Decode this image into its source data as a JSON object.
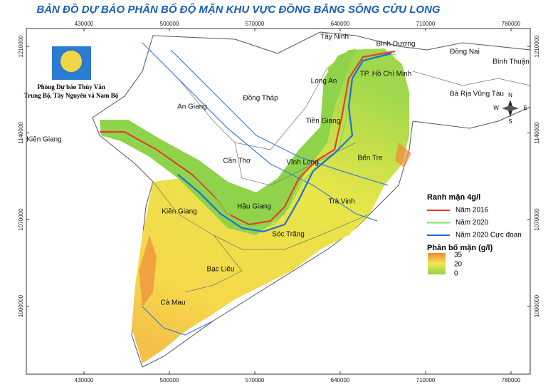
{
  "title": "BẢN ĐỒ DỰ BÁO PHÂN BỐ ĐỘ MẶN KHU VỰC ĐỒNG BẰNG SÔNG CỬU LONG",
  "logo": {
    "lines": [
      "Phòng Dự báo Thủy Văn",
      "Trung Bộ, Tây Nguyên và Nam Bộ"
    ]
  },
  "axes": {
    "x_ticks": [
      430000,
      500000,
      570000,
      640000,
      710000,
      780000
    ],
    "y_ticks": [
      1210000,
      1140000,
      1070000,
      1000000
    ]
  },
  "provinces": [
    {
      "label": "Tây Ninh"
    },
    {
      "label": "Bình Dương"
    },
    {
      "label": "Đồng Nai"
    },
    {
      "label": "Bình Thuận"
    },
    {
      "label": "Long An"
    },
    {
      "label": "TP. Hồ Chí Minh"
    },
    {
      "label": "Đồng Tháp"
    },
    {
      "label": "An Giang"
    },
    {
      "label": "Bà Rịa Vũng Tàu"
    },
    {
      "label": "Tiền Giang"
    },
    {
      "label": "Kiên Giang"
    },
    {
      "label": "Bến Tre"
    },
    {
      "label": "Cần Thơ"
    },
    {
      "label": "Vĩnh Long"
    },
    {
      "label": "Trà Vinh"
    },
    {
      "label": "Hậu Giang"
    },
    {
      "label": "Kiên Giang"
    },
    {
      "label": "Sóc Trăng"
    },
    {
      "label": "Bạc Liêu"
    },
    {
      "label": "Cà Mau"
    }
  ],
  "compass": {
    "n": "N",
    "s": "S",
    "e": "E",
    "w": "W"
  },
  "legend": {
    "boundary_title": "Ranh mặn 4g/l",
    "lines": [
      {
        "label": "Năm 2016",
        "color": "#e0432a"
      },
      {
        "label": "Năm 2020",
        "color": "#7ee05a"
      },
      {
        "label": "Năm 2020 Cực đoan",
        "color": "#1f6fd6"
      }
    ],
    "scale_title": "Phân bố mặn (g/l)",
    "scale_ticks": [
      35,
      20,
      0
    ]
  }
}
